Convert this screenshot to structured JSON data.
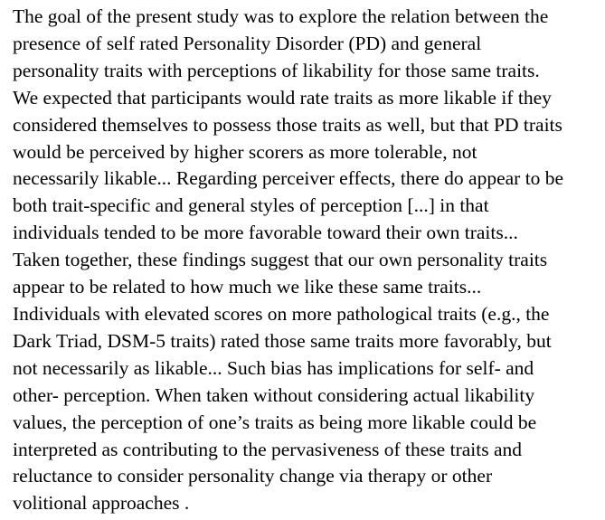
{
  "document": {
    "lines": [
      "The goal of the present study was to explore the relation between the",
      "presence of self rated Personality Disorder (PD) and general",
      "personality traits with perceptions of likability for those same traits.",
      "We expected that participants would rate traits as more likable if they",
      "considered themselves to possess those traits as well, but that PD traits",
      "would be perceived by higher scorers as more tolerable, not",
      "necessarily likable... Regarding perceiver effects, there do appear to be",
      "both trait-specific and general styles of perception [...] in that",
      "individuals tended to be more favorable toward their own traits...",
      "Taken together, these findings suggest that our own personality traits",
      "appear to be related to how much we like these same traits...",
      "Individuals with elevated scores on more pathological traits (e.g., the",
      "Dark Triad, DSM-5 traits) rated those same traits more favorably, but",
      "not necessarily as likable... Such bias has implications for self- and",
      "other- perception. When taken without considering actual likability",
      "values, the perception of one’s traits as being more likable could be",
      "interpreted as contributing to the pervasiveness of these traits and",
      "reluctance to consider personality change via therapy or other",
      "volitional approaches ."
    ]
  }
}
